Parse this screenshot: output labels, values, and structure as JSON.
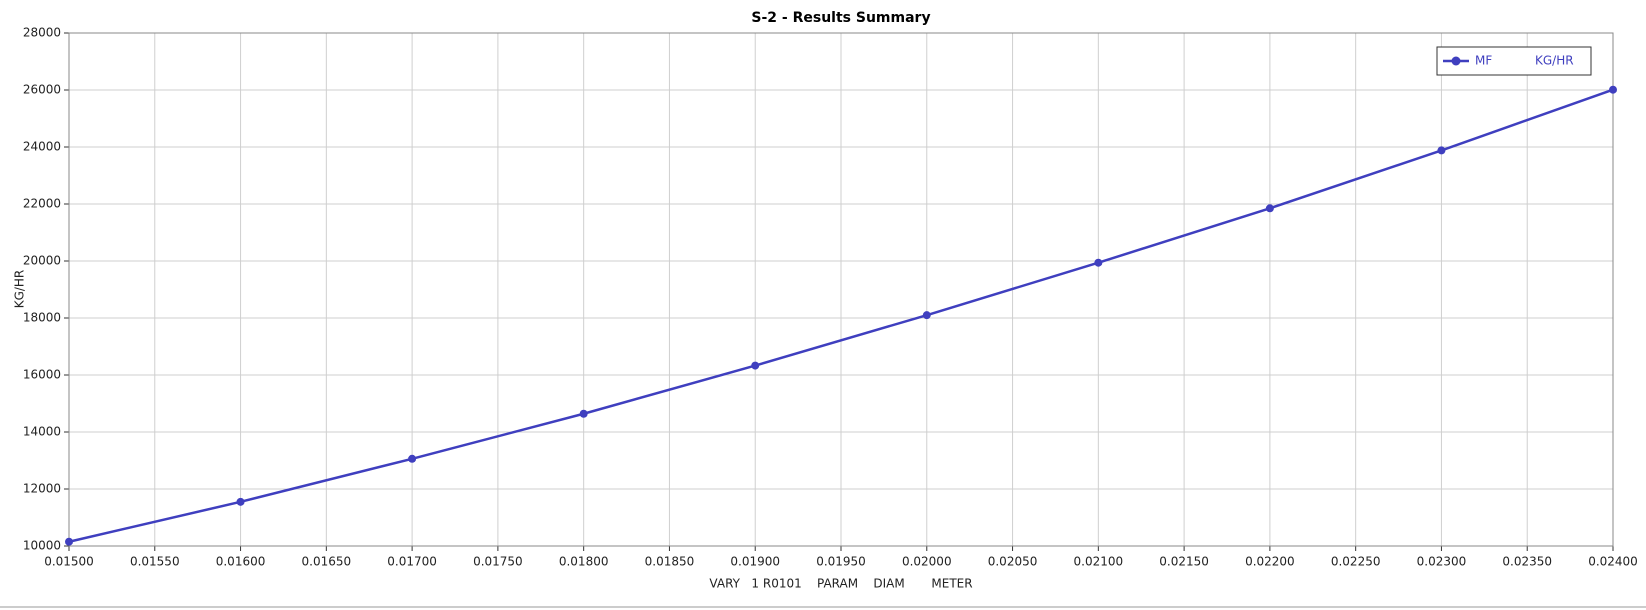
{
  "chart_data": {
    "type": "line",
    "title": "S-2 - Results Summary",
    "x_label": "VARY   1 R0101    PARAM    DIAM       METER",
    "y_label": "KG/HR",
    "x": [
      0.015,
      0.016,
      0.017,
      0.018,
      0.019,
      0.02,
      0.021,
      0.022,
      0.023,
      0.024
    ],
    "series": [
      {
        "name": "MF",
        "unit": "KG/HR",
        "color": "#3f3fbf",
        "values": [
          10150,
          11550,
          13060,
          14640,
          16330,
          18100,
          19940,
          21850,
          23880,
          26010
        ]
      }
    ],
    "xlim": [
      0.015,
      0.024
    ],
    "xticks": [
      {
        "value": 0.015,
        "label": "0.01500"
      },
      {
        "value": 0.0155,
        "label": "0.01550"
      },
      {
        "value": 0.016,
        "label": "0.01600"
      },
      {
        "value": 0.0165,
        "label": "0.01650"
      },
      {
        "value": 0.017,
        "label": "0.01700"
      },
      {
        "value": 0.0175,
        "label": "0.01750"
      },
      {
        "value": 0.018,
        "label": "0.01800"
      },
      {
        "value": 0.0185,
        "label": "0.01850"
      },
      {
        "value": 0.019,
        "label": "0.01900"
      },
      {
        "value": 0.0195,
        "label": "0.01950"
      },
      {
        "value": 0.02,
        "label": "0.02000"
      },
      {
        "value": 0.0205,
        "label": "0.02050"
      },
      {
        "value": 0.021,
        "label": "0.02100"
      },
      {
        "value": 0.0215,
        "label": "0.02150"
      },
      {
        "value": 0.022,
        "label": "0.02200"
      },
      {
        "value": 0.0225,
        "label": "0.02250"
      },
      {
        "value": 0.023,
        "label": "0.02300"
      },
      {
        "value": 0.0235,
        "label": "0.02350"
      },
      {
        "value": 0.024,
        "label": "0.02400"
      }
    ],
    "ylim": [
      10000,
      28000
    ],
    "yticks": [
      10000,
      12000,
      14000,
      16000,
      18000,
      20000,
      22000,
      24000,
      26000,
      28000
    ],
    "grid": true,
    "legend": "top-right"
  }
}
